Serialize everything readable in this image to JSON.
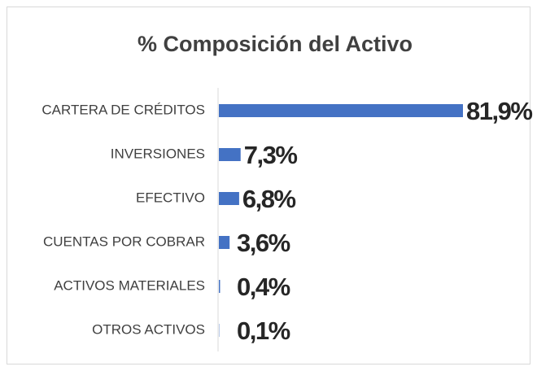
{
  "chart_data": {
    "type": "barh",
    "title": "% Composición del Activo",
    "categories": [
      "CARTERA DE CRÉDITOS",
      "INVERSIONES",
      "EFECTIVO",
      "CUENTAS POR COBRAR",
      "ACTIVOS MATERIALES",
      "OTROS ACTIVOS"
    ],
    "values": [
      81.9,
      7.3,
      6.8,
      3.6,
      0.4,
      0.1
    ],
    "value_labels": [
      "81,9%",
      "7,3%",
      "6,8%",
      "3,6%",
      "0,4%",
      "0,1%"
    ],
    "color": "#4472c4"
  }
}
